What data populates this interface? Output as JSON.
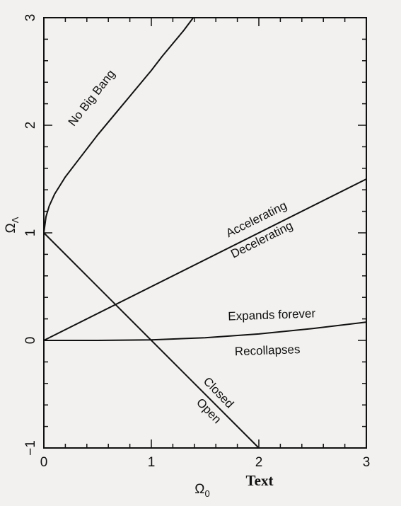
{
  "chart_data": {
    "type": "line",
    "title": "",
    "xlabel_symbol": "Ω",
    "xlabel_subscript": "0",
    "ylabel_symbol": "Ω",
    "ylabel_subscript": "Λ",
    "xlim": [
      0,
      3
    ],
    "ylim": [
      -1,
      3
    ],
    "x_ticks": [
      "0",
      "1",
      "2",
      "3"
    ],
    "y_ticks": [
      "−1",
      "0",
      "1",
      "2",
      "3"
    ],
    "grid": false,
    "series": [
      {
        "key": "no-big-bang-boundary",
        "x": [
          0,
          0.02,
          0.05,
          0.1,
          0.2,
          0.3,
          0.4,
          0.5,
          0.6,
          0.7,
          0.8,
          0.9,
          1.0,
          1.1,
          1.2,
          1.3,
          1.39
        ],
        "y": [
          1.0,
          1.15,
          1.25,
          1.36,
          1.52,
          1.65,
          1.78,
          1.91,
          2.03,
          2.15,
          2.27,
          2.39,
          2.51,
          2.64,
          2.76,
          2.88,
          3.0
        ]
      },
      {
        "key": "closed-open-boundary",
        "x": [
          0,
          2
        ],
        "y": [
          1,
          -1
        ]
      },
      {
        "key": "accelerating-decelerating-boundary",
        "x": [
          0,
          3
        ],
        "y": [
          0,
          1.5
        ]
      },
      {
        "key": "expands-recollapses-boundary",
        "x": [
          0,
          0.5,
          1.0,
          1.5,
          2.0,
          2.5,
          3.0
        ],
        "y": [
          0,
          0.0,
          0.005,
          0.025,
          0.06,
          0.11,
          0.17
        ]
      }
    ],
    "annotations": [
      {
        "text": "No Big Bang",
        "x": 0.45,
        "y": 2.25,
        "angle": -52
      },
      {
        "text": "Accelerating",
        "x": 1.98,
        "y": 1.12,
        "angle": -26.5
      },
      {
        "text": "Decelerating",
        "x": 2.03,
        "y": 0.93,
        "angle": -26.5
      },
      {
        "text": "Expands forever",
        "x": 2.12,
        "y": 0.23,
        "angle": -2
      },
      {
        "text": "Recollapses",
        "x": 2.08,
        "y": -0.1,
        "angle": -2
      },
      {
        "text": "Closed",
        "x": 1.62,
        "y": -0.49,
        "angle": 46
      },
      {
        "text": "Open",
        "x": 1.53,
        "y": -0.66,
        "angle": 46
      }
    ]
  },
  "extra_label": "Text"
}
